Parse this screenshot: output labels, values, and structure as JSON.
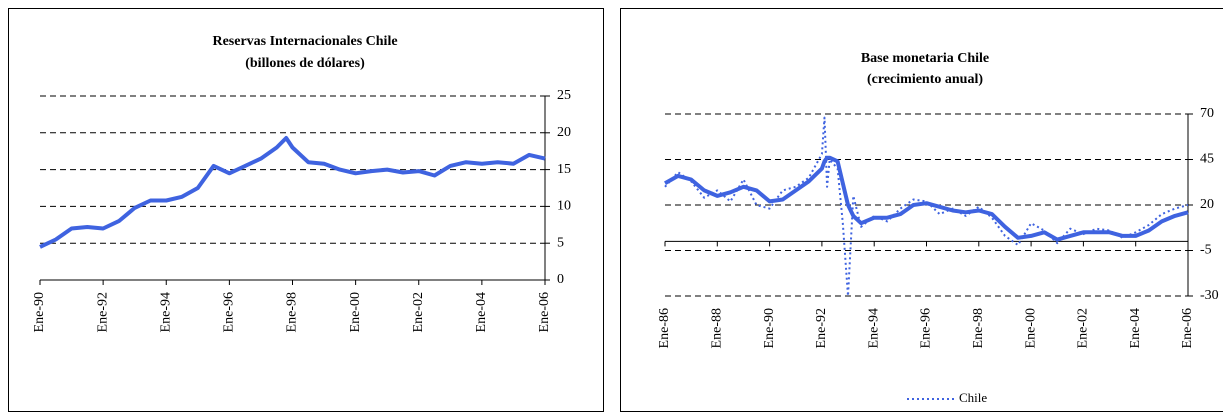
{
  "chart_data": [
    {
      "type": "line",
      "title": "Reservas Internacionales Chile",
      "subtitle": "(billones de dólares)",
      "x": [
        1990,
        1990.5,
        1991,
        1991.5,
        1992,
        1992.5,
        1993,
        1993.5,
        1994,
        1994.5,
        1995,
        1995.5,
        1996,
        1996.5,
        1997,
        1997.5,
        1997.8,
        1998,
        1998.5,
        1999,
        1999.5,
        2000,
        2000.5,
        2001,
        2001.5,
        2002,
        2002.5,
        2003,
        2003.5,
        2004,
        2004.5,
        2005,
        2005.5,
        2006
      ],
      "series": [
        {
          "color": "#3f63e0",
          "line_style": "solid",
          "values": [
            4.5,
            5.5,
            7,
            7.2,
            7,
            8,
            9.8,
            10.8,
            10.8,
            11.3,
            12.5,
            15.5,
            14.5,
            15.5,
            16.5,
            18,
            19.3,
            18,
            16,
            15.8,
            15,
            14.5,
            14.8,
            15,
            14.6,
            14.8,
            14.2,
            15.5,
            16,
            15.8,
            16,
            15.8,
            17,
            16.5
          ]
        }
      ],
      "xlim": [
        1990,
        2006
      ],
      "xticks": [
        {
          "value": 1990,
          "label": "Ene-90"
        },
        {
          "value": 1992,
          "label": "Ene-92"
        },
        {
          "value": 1994,
          "label": "Ene-94"
        },
        {
          "value": 1996,
          "label": "Ene-96"
        },
        {
          "value": 1998,
          "label": "Ene-98"
        },
        {
          "value": 2000,
          "label": "Ene-00"
        },
        {
          "value": 2002,
          "label": "Ene-02"
        },
        {
          "value": 2004,
          "label": "Ene-04"
        },
        {
          "value": 2006,
          "label": "Ene-06"
        }
      ],
      "ylim": [
        0,
        25
      ],
      "yticks": [
        0,
        5,
        10,
        15,
        20,
        25
      ],
      "grid": true
    },
    {
      "type": "line",
      "title": "Base monetaria Chile",
      "subtitle": "(crecimiento anual)",
      "x": [
        1986,
        1986.5,
        1987,
        1987.5,
        1988,
        1988.5,
        1989,
        1989.5,
        1990,
        1990.5,
        1991,
        1991.5,
        1992,
        1992.1,
        1992.2,
        1992.3,
        1992.6,
        1992.8,
        1993,
        1993.2,
        1993.5,
        1994,
        1994.5,
        1995,
        1995.5,
        1996,
        1996.5,
        1997,
        1997.5,
        1998,
        1998.5,
        1999,
        1999.5,
        2000,
        2000.5,
        2001,
        2001.5,
        2002,
        2002.5,
        2003,
        2003.5,
        2004,
        2004.5,
        2005,
        2005.5,
        2006
      ],
      "series": [
        {
          "color": "#3f63e0",
          "line_style": "solid",
          "values": [
            32,
            36,
            34,
            28,
            25,
            27,
            30,
            28,
            22,
            23,
            28,
            33,
            40,
            44,
            46,
            46,
            44,
            32,
            20,
            14,
            10,
            13,
            13,
            15,
            20,
            21,
            19,
            17,
            16,
            17,
            15,
            8,
            2,
            3,
            5,
            1,
            3,
            5,
            5,
            5,
            3,
            3,
            6,
            11,
            14,
            16
          ]
        },
        {
          "name": "Chile",
          "color": "#3f63e0",
          "line_style": "dotted",
          "values": [
            30,
            38,
            33,
            24,
            28,
            22,
            34,
            20,
            18,
            28,
            30,
            35,
            48,
            68,
            30,
            45,
            40,
            10,
            -30,
            25,
            8,
            14,
            11,
            18,
            23,
            22,
            15,
            18,
            14,
            19,
            13,
            3,
            -2,
            10,
            6,
            -1,
            7,
            4,
            7,
            6,
            2,
            5,
            9,
            15,
            18,
            20
          ]
        }
      ],
      "xlim": [
        1986,
        2006
      ],
      "xticks": [
        {
          "value": 1986,
          "label": "Ene-86"
        },
        {
          "value": 1988,
          "label": "Ene-88"
        },
        {
          "value": 1990,
          "label": "Ene-90"
        },
        {
          "value": 1992,
          "label": "Ene-92"
        },
        {
          "value": 1994,
          "label": "Ene-94"
        },
        {
          "value": 1996,
          "label": "Ene-96"
        },
        {
          "value": 1998,
          "label": "Ene-98"
        },
        {
          "value": 2000,
          "label": "Ene-00"
        },
        {
          "value": 2002,
          "label": "Ene-02"
        },
        {
          "value": 2004,
          "label": "Ene-04"
        },
        {
          "value": 2006,
          "label": "Ene-06"
        }
      ],
      "ylim": [
        -30,
        70
      ],
      "yticks": [
        -30,
        -5,
        20,
        45,
        70
      ],
      "grid": true,
      "legend": "bottom"
    }
  ]
}
